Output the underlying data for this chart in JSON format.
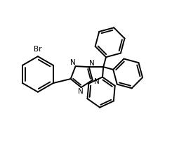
{
  "bg_color": "#ffffff",
  "line_color": "#000000",
  "line_width": 1.4,
  "figsize": [
    2.45,
    2.06
  ],
  "dpi": 100,
  "xlim": [
    0,
    10
  ],
  "ylim": [
    0,
    8.5
  ]
}
